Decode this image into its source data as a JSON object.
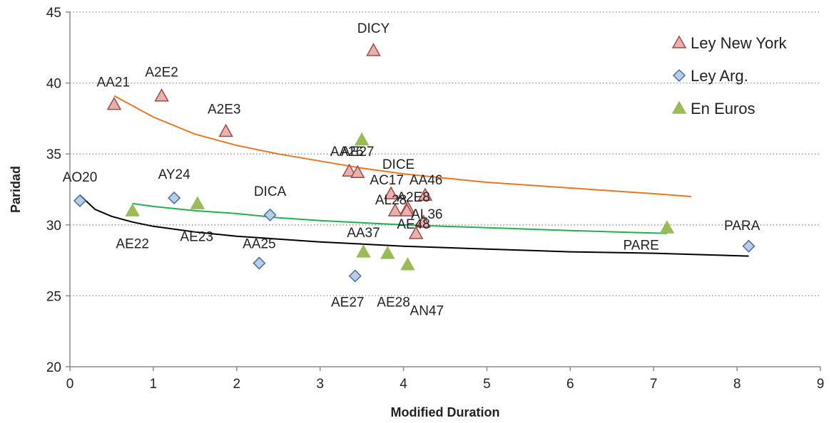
{
  "chart_data": {
    "type": "scatter",
    "xlabel": "Modified Duration",
    "ylabel": "Paridad",
    "xlim": [
      0,
      9
    ],
    "ylim": [
      20,
      45
    ],
    "xticks": [
      "0",
      "1",
      "2",
      "3",
      "4",
      "5",
      "6",
      "7",
      "8",
      "9"
    ],
    "yticks": [
      "20",
      "25",
      "30",
      "35",
      "40",
      "45"
    ],
    "grid": "horizontal-dotted",
    "legend_position": "top-right",
    "series": [
      {
        "name": "Ley New York",
        "marker": "triangle",
        "color": "#E6B1AE",
        "stroke": "#A14A45",
        "points": [
          {
            "label": "AA21",
            "x": 0.53,
            "y": 38.5
          },
          {
            "label": "A2E2",
            "x": 1.1,
            "y": 39.1
          },
          {
            "label": "A2E3",
            "x": 1.87,
            "y": 36.6
          },
          {
            "label": "DICY",
            "x": 3.64,
            "y": 42.3
          },
          {
            "label": "AA26",
            "x": 3.35,
            "y": 33.8
          },
          {
            "label": "AE27",
            "x": 3.45,
            "y": 33.7
          },
          {
            "label": "DICE",
            "x": 3.85,
            "y": 32.2
          },
          {
            "label": "AC17",
            "x": 3.9,
            "y": 31.0
          },
          {
            "label": "AA46",
            "x": 4.26,
            "y": 32.1
          },
          {
            "label": "A2E8",
            "x": 4.05,
            "y": 31.2
          },
          {
            "label": "AL36",
            "x": 4.24,
            "y": 30.2
          },
          {
            "label": "AL28",
            "x": 4.15,
            "y": 29.4
          },
          {
            "label": "AE48",
            "x": 4.04,
            "y": 31.0
          }
        ],
        "trend": {
          "x": [
            0.53,
            1.0,
            1.5,
            2.0,
            2.5,
            3.0,
            3.5,
            4.0,
            4.5,
            5.0,
            5.5,
            6.0,
            6.5,
            7.0,
            7.45
          ],
          "y": [
            39.1,
            37.6,
            36.4,
            35.6,
            35.0,
            34.5,
            34.0,
            33.6,
            33.3,
            33.0,
            32.8,
            32.6,
            32.4,
            32.2,
            32.0
          ]
        }
      },
      {
        "name": "Ley Arg.",
        "marker": "diamond",
        "color": "#B7CDE8",
        "stroke": "#4C6F96",
        "points": [
          {
            "label": "AO20",
            "x": 0.12,
            "y": 31.7
          },
          {
            "label": "AY24",
            "x": 1.25,
            "y": 31.9
          },
          {
            "label": "DICA",
            "x": 2.4,
            "y": 30.7
          },
          {
            "label": "AA25",
            "x": 2.27,
            "y": 27.3
          },
          {
            "label": "AE27",
            "x": 3.42,
            "y": 26.4
          },
          {
            "label": "PARA",
            "x": 8.14,
            "y": 28.5
          }
        ],
        "trend": {
          "x": [
            0.12,
            0.3,
            0.5,
            0.75,
            1.0,
            1.5,
            2.0,
            2.5,
            3.0,
            4.0,
            5.0,
            6.0,
            7.0,
            8.14
          ],
          "y": [
            32.1,
            31.1,
            30.6,
            30.2,
            29.9,
            29.5,
            29.2,
            29.0,
            28.8,
            28.5,
            28.3,
            28.1,
            28.0,
            27.8
          ]
        }
      },
      {
        "name": "En Euros",
        "marker": "triangle",
        "color": "#9BBB59",
        "stroke": "#9BBB59",
        "points": [
          {
            "label": "AE22",
            "x": 0.75,
            "y": 31.0
          },
          {
            "label": "AE23",
            "x": 1.53,
            "y": 31.5
          },
          {
            "label": "AA37",
            "x": 3.5,
            "y": 36.0
          },
          {
            "label": "AA37",
            "x": 3.52,
            "y": 28.1
          },
          {
            "label": "AE28",
            "x": 3.81,
            "y": 28.0
          },
          {
            "label": "AN47",
            "x": 4.05,
            "y": 27.2
          },
          {
            "label": "PARE",
            "x": 7.16,
            "y": 29.8
          }
        ],
        "trend": {
          "x": [
            0.75,
            1.0,
            1.5,
            2.0,
            2.5,
            3.0,
            4.0,
            5.0,
            6.0,
            7.16
          ],
          "y": [
            31.5,
            31.3,
            31.0,
            30.8,
            30.5,
            30.3,
            30.0,
            29.8,
            29.6,
            29.4
          ]
        }
      }
    ],
    "trend_colors": [
      "#E87722",
      "#000000",
      "#22B04B"
    ],
    "point_labels": [
      {
        "text": "DICY",
        "x": 3.64,
        "y": 43.9
      },
      {
        "text": "AA21",
        "x": 0.52,
        "y": 40.1
      },
      {
        "text": "A2E2",
        "x": 1.1,
        "y": 40.8
      },
      {
        "text": "A2E3",
        "x": 1.85,
        "y": 38.2
      },
      {
        "text": "AA26",
        "x": 3.32,
        "y": 35.2
      },
      {
        "text": "AE27",
        "x": 3.45,
        "y": 35.2
      },
      {
        "text": "DICE",
        "x": 3.94,
        "y": 34.3
      },
      {
        "text": "AC17",
        "x": 3.8,
        "y": 33.2
      },
      {
        "text": "AA46",
        "x": 4.27,
        "y": 33.2
      },
      {
        "text": "AL28",
        "x": 3.85,
        "y": 31.8
      },
      {
        "text": "A2E8",
        "x": 4.12,
        "y": 32.0
      },
      {
        "text": "AL36",
        "x": 4.28,
        "y": 30.8
      },
      {
        "text": "AE48",
        "x": 4.12,
        "y": 30.1
      },
      {
        "text": "AO20",
        "x": 0.12,
        "y": 33.4
      },
      {
        "text": "AY24",
        "x": 1.25,
        "y": 33.6
      },
      {
        "text": "DICA",
        "x": 2.4,
        "y": 32.4
      },
      {
        "text": "AE22",
        "x": 0.75,
        "y": 28.7
      },
      {
        "text": "AE23",
        "x": 1.52,
        "y": 29.2
      },
      {
        "text": "AA25",
        "x": 2.27,
        "y": 28.7
      },
      {
        "text": "AA37",
        "x": 3.52,
        "y": 29.5
      },
      {
        "text": "AE27",
        "x": 3.33,
        "y": 24.6
      },
      {
        "text": "AE28",
        "x": 3.88,
        "y": 24.6
      },
      {
        "text": "AN47",
        "x": 4.28,
        "y": 24.0
      },
      {
        "text": "PARE",
        "x": 6.85,
        "y": 28.6
      },
      {
        "text": "PARA",
        "x": 8.06,
        "y": 30.0
      }
    ]
  }
}
